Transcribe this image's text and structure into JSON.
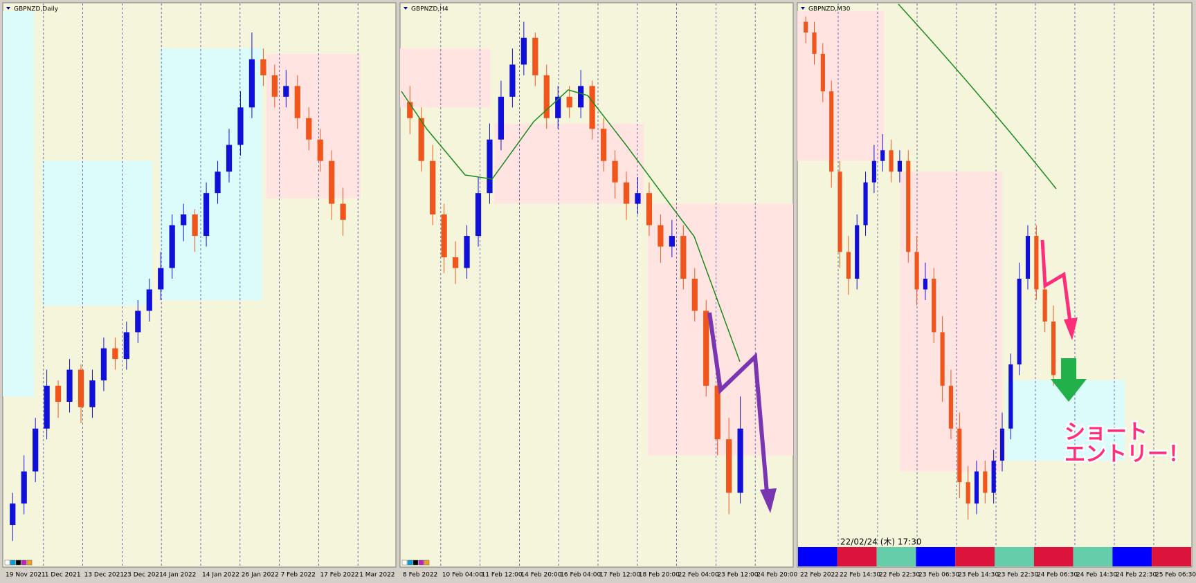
{
  "chart_data": [
    {
      "type": "candlestick",
      "title": "GBPNZD,Daily",
      "x_labels": [
        "19 Nov 2021",
        "1 Dec 2021",
        "13 Dec 2021",
        "23 Dec 2021",
        "4 Jan 2022",
        "14 Jan 2022",
        "26 Jan 2022",
        "7 Feb 2022",
        "17 Feb 2022",
        "1 Mar 2022"
      ],
      "open": [
        4,
        8,
        14,
        22,
        30,
        27,
        33,
        26,
        31,
        37,
        35,
        40,
        44,
        48,
        52,
        60,
        62,
        58,
        66,
        70,
        75,
        82,
        91,
        88,
        84,
        86,
        80,
        76,
        72,
        64
      ],
      "high": [
        10,
        17,
        24,
        33,
        31,
        35,
        34,
        33,
        39,
        39,
        42,
        46,
        50,
        55,
        62,
        64,
        63,
        68,
        72,
        78,
        85,
        96,
        93,
        90,
        89,
        88,
        82,
        78,
        74,
        67
      ],
      "low": [
        1,
        6,
        12,
        20,
        24,
        25,
        23,
        24,
        29,
        33,
        33,
        38,
        42,
        46,
        50,
        57,
        55,
        56,
        64,
        68,
        73,
        80,
        86,
        82,
        82,
        78,
        74,
        70,
        61,
        58
      ],
      "close": [
        8,
        14,
        22,
        30,
        27,
        33,
        26,
        31,
        37,
        35,
        40,
        44,
        48,
        52,
        60,
        62,
        58,
        66,
        70,
        75,
        82,
        91,
        88,
        84,
        86,
        80,
        76,
        72,
        64,
        61
      ],
      "ylim": [
        0,
        100
      ],
      "up_color": "#1010d8",
      "down_color": "#f0561c"
    },
    {
      "type": "candlestick",
      "title": "GBPNZD,H4",
      "x_labels": [
        "8 Feb 2022",
        "10 Feb 04:00",
        "11 Feb 12:00",
        "14 Feb 20:00",
        "16 Feb 04:00",
        "17 Feb 12:00",
        "18 Feb 20:00",
        "22 Feb 04:00",
        "23 Feb 12:00",
        "24 Feb 20:00"
      ],
      "open": [
        83,
        80,
        72,
        62,
        54,
        52,
        58,
        66,
        76,
        84,
        90,
        95,
        88,
        80,
        84,
        82,
        86,
        78,
        72,
        68,
        64,
        66,
        60,
        56,
        58,
        50,
        44,
        30,
        20,
        10
      ],
      "high": [
        86,
        82,
        75,
        64,
        57,
        60,
        69,
        79,
        87,
        93,
        98,
        96,
        90,
        86,
        86,
        89,
        87,
        80,
        74,
        70,
        69,
        68,
        62,
        61,
        60,
        52,
        46,
        33,
        24,
        28
      ],
      "low": [
        77,
        70,
        60,
        51,
        49,
        50,
        56,
        64,
        74,
        82,
        88,
        86,
        78,
        78,
        80,
        80,
        76,
        70,
        65,
        61,
        62,
        58,
        53,
        54,
        48,
        42,
        28,
        17,
        6,
        8
      ],
      "close": [
        80,
        72,
        62,
        54,
        52,
        58,
        66,
        76,
        84,
        90,
        95,
        88,
        80,
        84,
        82,
        86,
        78,
        72,
        68,
        64,
        66,
        60,
        56,
        58,
        50,
        44,
        30,
        20,
        10,
        22
      ],
      "ylim": [
        0,
        100
      ],
      "up_color": "#1010d8",
      "down_color": "#f0561c"
    },
    {
      "type": "candlestick",
      "title": "GBPNZD,M30",
      "x_labels": [
        "22 Feb 2022",
        "22 Feb 14:30",
        "22 Feb 22:30",
        "23 Feb 06:30",
        "23 Feb 14:30",
        "23 Feb 22:30",
        "24 Feb 06:30",
        "24 Feb 14:30",
        "24 Feb 22:30",
        "25 Feb 06:30"
      ],
      "open": [
        98,
        96,
        92,
        85,
        70,
        55,
        50,
        60,
        68,
        72,
        74,
        70,
        72,
        55,
        48,
        50,
        40,
        30,
        22,
        12,
        8,
        14,
        10,
        16,
        22,
        34,
        50,
        58,
        48,
        42
      ],
      "high": [
        99,
        98,
        94,
        87,
        72,
        58,
        62,
        70,
        75,
        77,
        76,
        74,
        74,
        58,
        53,
        52,
        43,
        33,
        25,
        15,
        16,
        16,
        18,
        25,
        36,
        53,
        60,
        60,
        50,
        45
      ],
      "low": [
        94,
        90,
        83,
        67,
        52,
        47,
        48,
        58,
        66,
        70,
        68,
        68,
        53,
        45,
        46,
        38,
        27,
        20,
        9,
        5,
        6,
        8,
        8,
        14,
        20,
        32,
        48,
        46,
        40,
        30
      ],
      "close": [
        96,
        92,
        85,
        70,
        55,
        50,
        60,
        68,
        72,
        74,
        70,
        72,
        55,
        48,
        50,
        40,
        30,
        22,
        12,
        8,
        14,
        10,
        16,
        22,
        34,
        50,
        58,
        48,
        42,
        32
      ],
      "ylim": [
        0,
        100
      ],
      "up_color": "#1010d8",
      "down_color": "#f0561c",
      "timestamp": "22/02/24 (木) 17:30",
      "annotations": [
        "ショート",
        "エントリー！"
      ]
    }
  ]
}
